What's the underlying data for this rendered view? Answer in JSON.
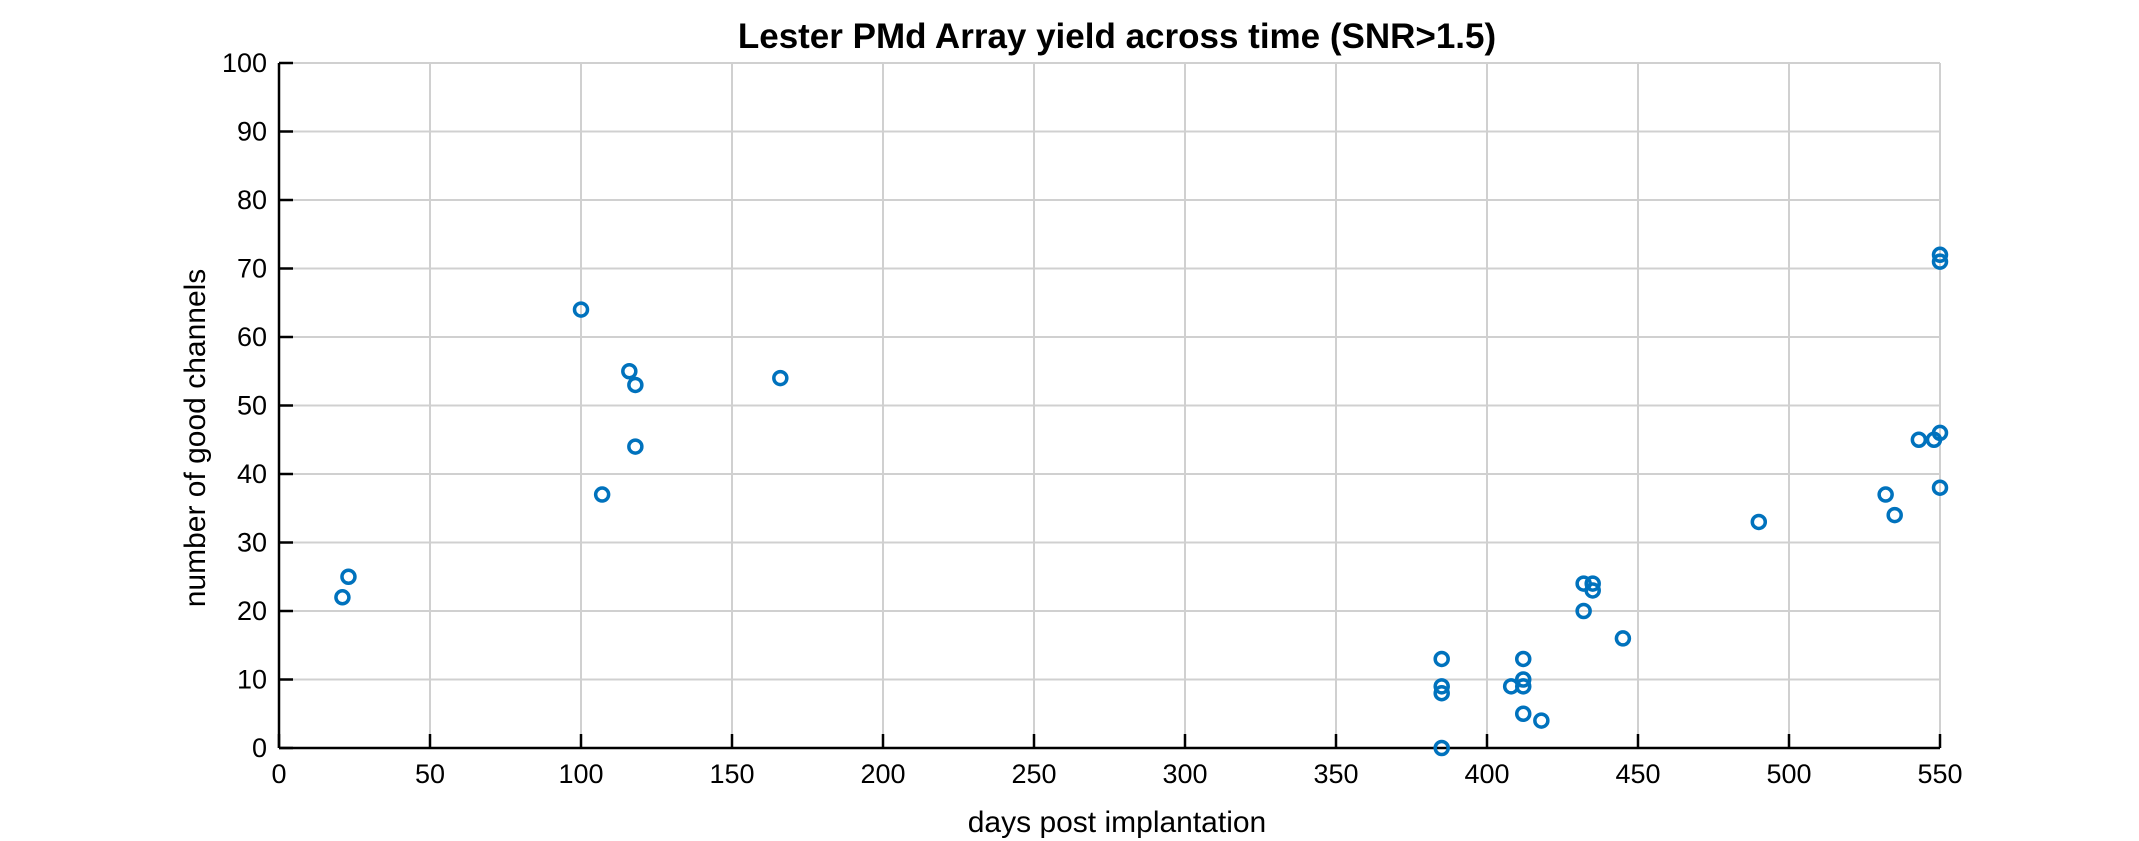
{
  "chart_data": {
    "type": "scatter",
    "title": "Lester PMd Array yield across time (SNR>1.5)",
    "xlabel": "days post implantation",
    "ylabel": "number of good channels",
    "xlim": [
      0,
      550
    ],
    "ylim": [
      0,
      100
    ],
    "xticks": [
      0,
      50,
      100,
      150,
      200,
      250,
      300,
      350,
      400,
      450,
      500,
      550
    ],
    "yticks": [
      0,
      10,
      20,
      30,
      40,
      50,
      60,
      70,
      80,
      90,
      100
    ],
    "grid": true,
    "legend": "none",
    "marker": "open-circle",
    "color": "#0072BD",
    "points": [
      {
        "x": 21,
        "y": 22
      },
      {
        "x": 23,
        "y": 25
      },
      {
        "x": 100,
        "y": 64
      },
      {
        "x": 107,
        "y": 37
      },
      {
        "x": 116,
        "y": 55
      },
      {
        "x": 118,
        "y": 53
      },
      {
        "x": 118,
        "y": 44
      },
      {
        "x": 166,
        "y": 54
      },
      {
        "x": 385,
        "y": 13
      },
      {
        "x": 385,
        "y": 9
      },
      {
        "x": 385,
        "y": 8
      },
      {
        "x": 385,
        "y": 0
      },
      {
        "x": 408,
        "y": 9
      },
      {
        "x": 412,
        "y": 13
      },
      {
        "x": 412,
        "y": 10
      },
      {
        "x": 412,
        "y": 9
      },
      {
        "x": 412,
        "y": 5
      },
      {
        "x": 418,
        "y": 4
      },
      {
        "x": 432,
        "y": 24
      },
      {
        "x": 432,
        "y": 20
      },
      {
        "x": 435,
        "y": 24
      },
      {
        "x": 435,
        "y": 23
      },
      {
        "x": 445,
        "y": 16
      },
      {
        "x": 490,
        "y": 33
      },
      {
        "x": 532,
        "y": 37
      },
      {
        "x": 535,
        "y": 34
      },
      {
        "x": 543,
        "y": 45
      },
      {
        "x": 548,
        "y": 45
      },
      {
        "x": 550,
        "y": 72
      },
      {
        "x": 550,
        "y": 71
      },
      {
        "x": 550,
        "y": 46
      },
      {
        "x": 550,
        "y": 38
      }
    ]
  }
}
